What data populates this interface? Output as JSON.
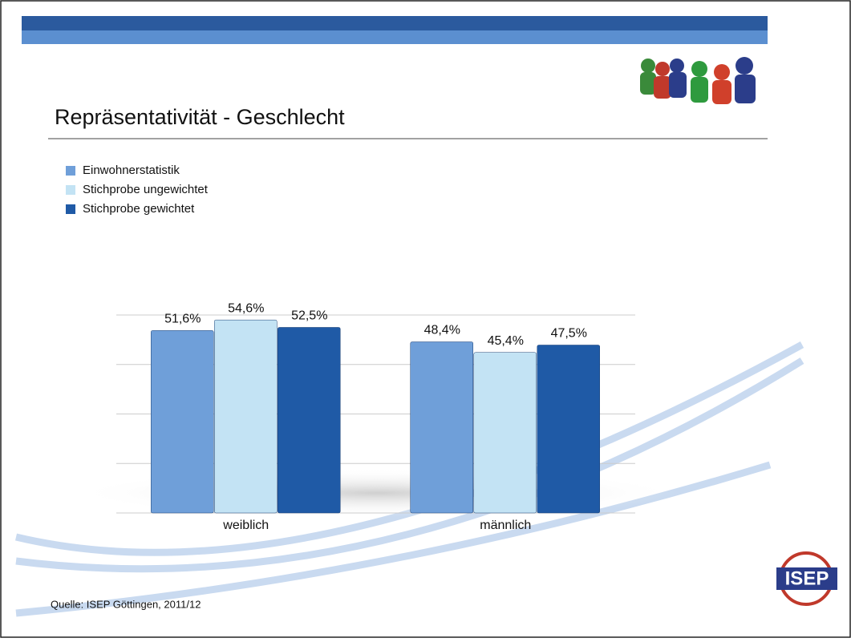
{
  "chart_data": {
    "type": "bar",
    "title": "Repräsentativität - Geschlecht",
    "categories": [
      "weiblich",
      "männlich"
    ],
    "series": [
      {
        "name": "Einwohnerstatistik",
        "color": "#6f9fd9",
        "values": [
          51.6,
          48.4
        ],
        "value_labels": [
          "51,6%",
          "48,4%"
        ]
      },
      {
        "name": "Stichprobe ungewichtet",
        "color": "#c3e3f4",
        "values": [
          54.6,
          45.4
        ],
        "value_labels": [
          "54,6%",
          "45,4%"
        ]
      },
      {
        "name": "Stichprobe gewichtet",
        "color": "#1f5aa6",
        "values": [
          52.5,
          47.5
        ],
        "value_labels": [
          "52,5%",
          "47,5%"
        ]
      }
    ],
    "ylim": [
      0,
      56
    ],
    "yticks": [
      0,
      14,
      28,
      42,
      56
    ],
    "grid": true,
    "legend": "top-left",
    "source": "Quelle: ISEP Göttingen, 2011/12"
  },
  "logo": {
    "text": "ISEP"
  }
}
